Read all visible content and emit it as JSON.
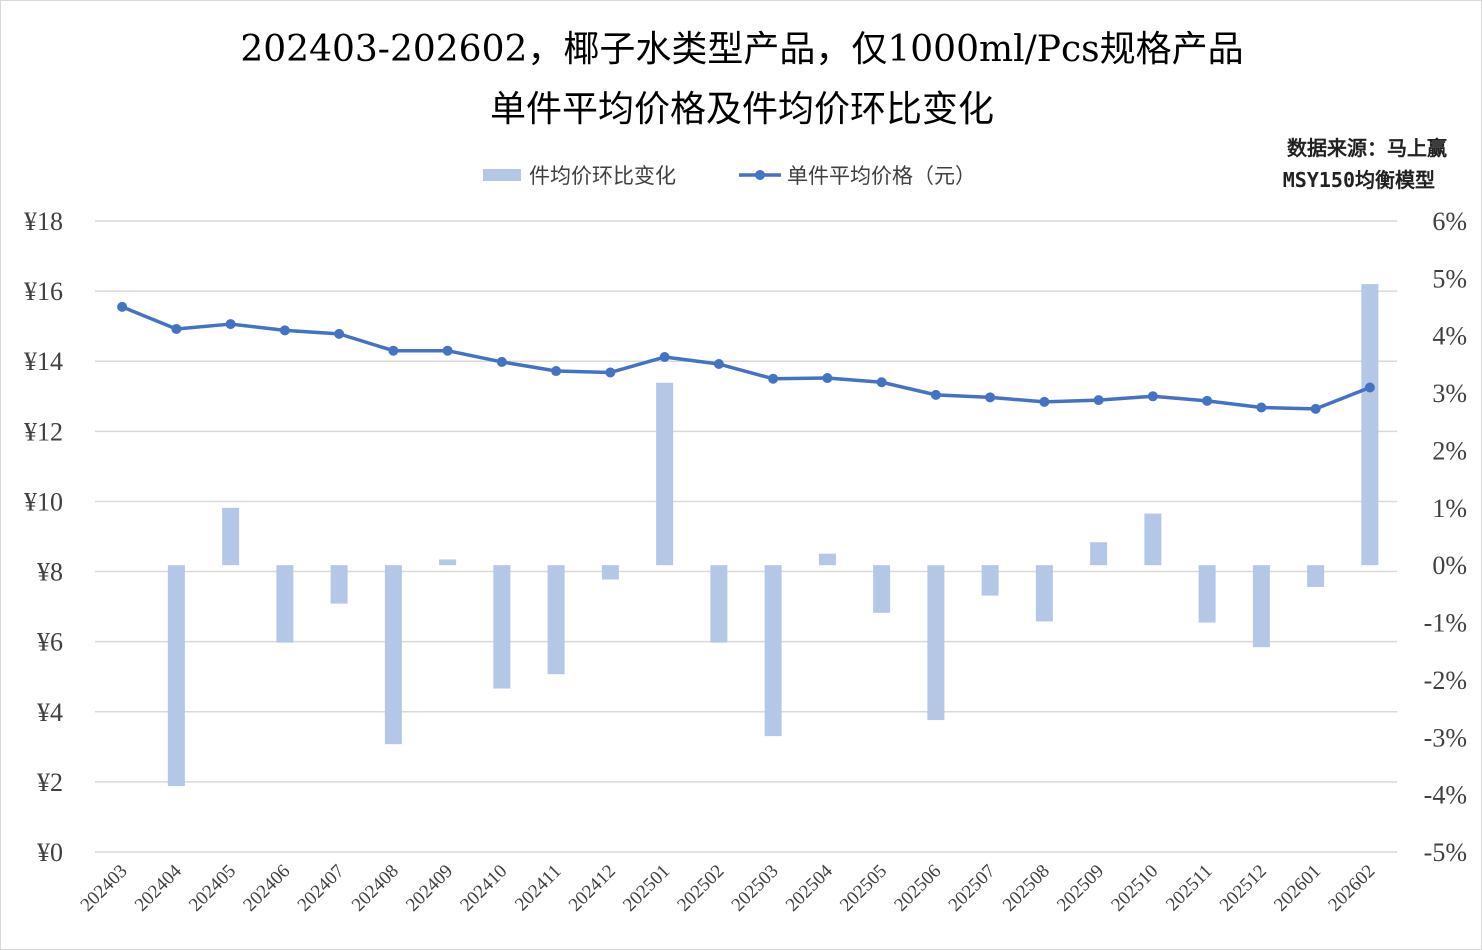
{
  "colors": {
    "bar": "#b4c7e7",
    "line": "#4472c4",
    "grid": "#d9d9d9"
  },
  "source": {
    "line1": "数据来源：马上赢",
    "line2": "MSY150均衡模型"
  },
  "chart_data": {
    "type": "bar+line",
    "title": "202403-202602，椰子水类型产品，仅1000ml/Pcs规格产品",
    "subtitle": "单件平均价格及件均价环比变化",
    "categories": [
      "202403",
      "202404",
      "202405",
      "202406",
      "202407",
      "202408",
      "202409",
      "202410",
      "202411",
      "202412",
      "202501",
      "202502",
      "202503",
      "202504",
      "202505",
      "202506",
      "202507",
      "202508",
      "202509",
      "202510",
      "202511",
      "202512",
      "202601",
      "202602"
    ],
    "series": [
      {
        "name": "件均价环比变化",
        "type": "bar",
        "axis": "right",
        "values": [
          null,
          -3.85,
          1.0,
          -1.35,
          -0.67,
          -3.12,
          0.1,
          -2.15,
          -1.9,
          -0.25,
          3.18,
          -1.35,
          -2.98,
          0.2,
          -0.83,
          -2.7,
          -0.53,
          -0.98,
          0.4,
          0.9,
          -1.0,
          -1.43,
          -0.38,
          4.9
        ]
      },
      {
        "name": "单件平均价格（元）",
        "type": "line",
        "axis": "left",
        "values": [
          15.55,
          14.92,
          15.06,
          14.88,
          14.78,
          14.3,
          14.3,
          13.98,
          13.72,
          13.68,
          14.12,
          13.92,
          13.5,
          13.52,
          13.4,
          13.04,
          12.97,
          12.84,
          12.89,
          13.0,
          12.87,
          12.68,
          12.64,
          13.25
        ]
      }
    ],
    "yleft": {
      "lim": [
        0,
        18
      ],
      "ticks": [
        "¥0",
        "¥2",
        "¥4",
        "¥6",
        "¥8",
        "¥10",
        "¥12",
        "¥14",
        "¥16",
        "¥18"
      ]
    },
    "yright": {
      "lim": [
        -5,
        6
      ],
      "ticks": [
        "-5%",
        "-4%",
        "-3%",
        "-2%",
        "-1%",
        "0%",
        "1%",
        "2%",
        "3%",
        "4%",
        "5%",
        "6%"
      ]
    },
    "legend": {
      "bar_label": "件均价环比变化",
      "line_label": "单件平均价格（元）",
      "placement": "top-center"
    },
    "grid": true
  }
}
